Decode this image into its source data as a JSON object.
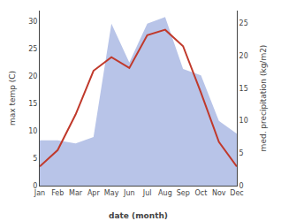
{
  "chart_data": {
    "type": "line",
    "categories": [
      "Jan",
      "Feb",
      "Mar",
      "Apr",
      "May",
      "Jun",
      "Jul",
      "Aug",
      "Sep",
      "Oct",
      "Nov",
      "Dec"
    ],
    "series": [
      {
        "type": "line",
        "color": "#c0392b",
        "values": [
          3.5,
          6.5,
          13.0,
          21.0,
          23.5,
          21.5,
          27.5,
          28.5,
          25.5,
          17.0,
          8.0,
          3.5
        ]
      },
      {
        "type": "area",
        "color": "#b8c4e8",
        "axis": "y2",
        "values": [
          7.0,
          7.0,
          6.5,
          7.5,
          25.0,
          19.0,
          25.0,
          26.0,
          18.0,
          17.0,
          10.0,
          8.0
        ]
      }
    ],
    "xlabel": "date (month)",
    "ylabel": "max temp (C)",
    "y2label": "med. precipitation (kg/m2)",
    "ylim": [
      0,
      32
    ],
    "yticks": [
      0,
      5,
      10,
      15,
      20,
      25,
      30
    ],
    "y2lim": [
      0,
      27
    ],
    "y2ticks": [
      0,
      5,
      10,
      15,
      20,
      25
    ],
    "grid": false
  }
}
